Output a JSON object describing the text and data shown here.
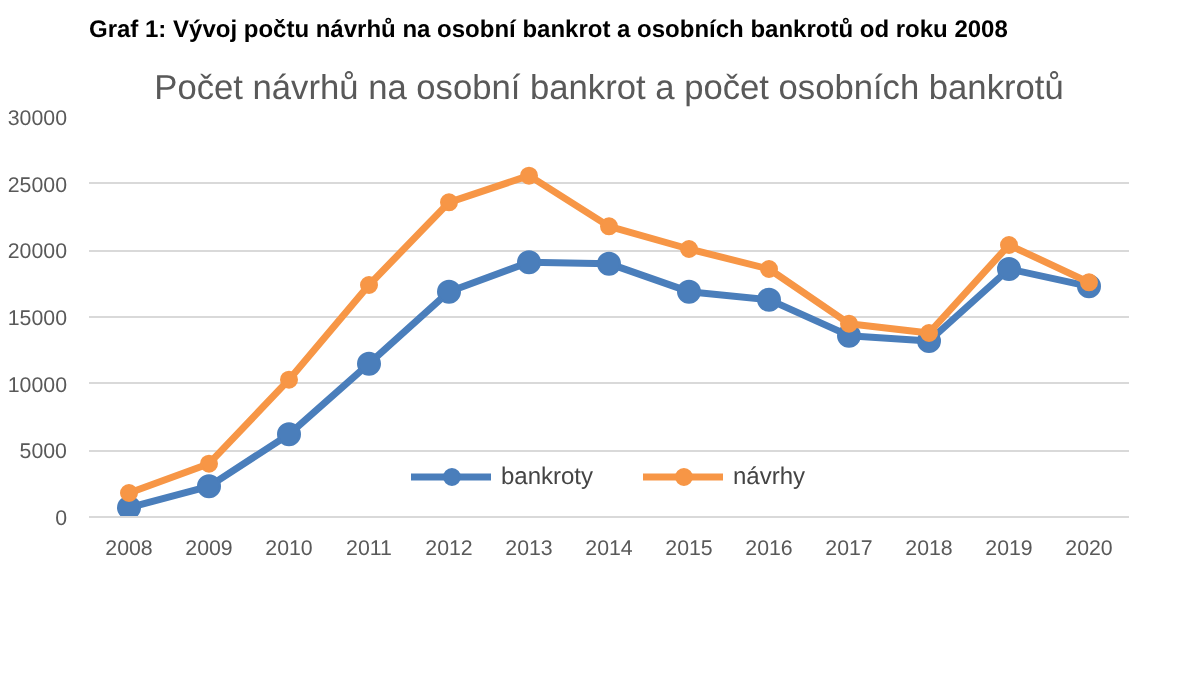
{
  "chart_data": {
    "type": "line",
    "title": "Graf 1: Vývoj počtu návrhů na osobní bankrot a osobních bankrotů od roku 2008",
    "subtitle": "Počet návrhů na osobní bankrot a počet osobních bankrotů",
    "categories": [
      "2008",
      "2009",
      "2010",
      "2011",
      "2012",
      "2013",
      "2014",
      "2015",
      "2016",
      "2017",
      "2018",
      "2019",
      "2020"
    ],
    "series": [
      {
        "name": "bankroty",
        "color": "#4a7ebb",
        "values": [
          700,
          2300,
          6200,
          11500,
          16900,
          19100,
          19000,
          16900,
          16300,
          13600,
          13200,
          18600,
          17300
        ]
      },
      {
        "name": "návrhy",
        "color": "#f79646",
        "values": [
          1800,
          4000,
          10300,
          17400,
          23600,
          25600,
          21800,
          20100,
          18600,
          14500,
          13800,
          20400,
          17600
        ]
      }
    ],
    "ylim": [
      0,
      30000
    ],
    "yticks": [
      0,
      5000,
      10000,
      15000,
      20000,
      25000,
      30000
    ],
    "grid": "y",
    "legend": "bottom",
    "marker": "circle",
    "line_style": "solid"
  }
}
